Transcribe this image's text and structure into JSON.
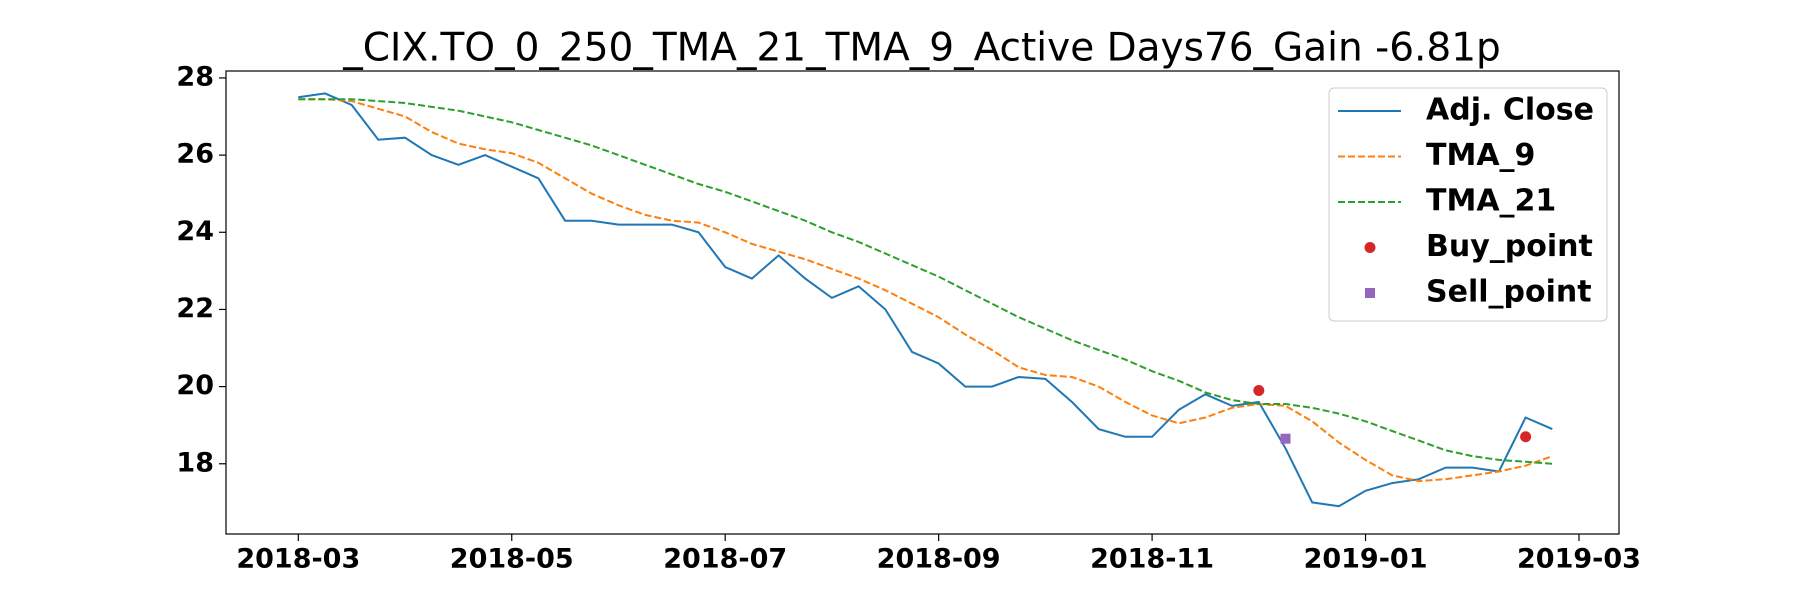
{
  "chart_data": {
    "type": "line",
    "title": "_CIX.TO_0_250_TMA_21_TMA_9_Active Days76_Gain  -6.81p",
    "categories": [
      "2018-03",
      null,
      null,
      null,
      null,
      null,
      null,
      null,
      "2018-05",
      null,
      null,
      null,
      null,
      null,
      null,
      null,
      "2018-07",
      null,
      null,
      null,
      null,
      null,
      null,
      null,
      "2018-09",
      null,
      null,
      null,
      null,
      null,
      null,
      null,
      "2018-11",
      null,
      null,
      null,
      null,
      null,
      null,
      null,
      "2019-01",
      null,
      null,
      null,
      null,
      null,
      null,
      null,
      "2019-03"
    ],
    "ylim": [
      16.18,
      28.18
    ],
    "yticks": [
      18,
      20,
      22,
      24,
      26,
      28
    ],
    "grid": false,
    "legend": "upper right",
    "series": [
      {
        "name": "Adj. Close",
        "color": "#1f77b4",
        "linestyle": "-",
        "values": [
          27.5,
          27.6,
          27.3,
          26.4,
          26.45,
          26.0,
          25.75,
          26.0,
          25.7,
          25.4,
          24.3,
          24.3,
          24.2,
          24.2,
          24.2,
          24.0,
          23.1,
          22.8,
          23.4,
          22.8,
          22.3,
          22.6,
          22.0,
          20.9,
          20.6,
          20.0,
          20.0,
          20.25,
          20.2,
          19.6,
          18.9,
          18.7,
          18.7,
          19.4,
          19.8,
          19.5,
          19.6,
          18.4,
          17.0,
          16.9,
          17.3,
          17.5,
          17.6,
          17.9,
          17.9,
          17.8,
          19.2,
          18.9,
          null
        ]
      },
      {
        "name": "TMA_9",
        "color": "#ff7f0e",
        "linestyle": "--",
        "values": [
          27.45,
          27.45,
          27.4,
          27.2,
          27.0,
          26.6,
          26.3,
          26.15,
          26.05,
          25.8,
          25.4,
          25.0,
          24.7,
          24.45,
          24.3,
          24.25,
          24.0,
          23.7,
          23.5,
          23.3,
          23.05,
          22.8,
          22.5,
          22.15,
          21.8,
          21.35,
          20.95,
          20.5,
          20.3,
          20.25,
          20.0,
          19.6,
          19.25,
          19.05,
          19.2,
          19.45,
          19.55,
          19.5,
          19.1,
          18.55,
          18.1,
          17.7,
          17.55,
          17.6,
          17.7,
          17.8,
          17.95,
          18.2,
          null
        ]
      },
      {
        "name": "TMA_21",
        "color": "#2ca02c",
        "linestyle": "--",
        "values": [
          27.45,
          27.45,
          27.45,
          27.4,
          27.35,
          27.25,
          27.15,
          27.0,
          26.85,
          26.65,
          26.45,
          26.25,
          26.0,
          25.75,
          25.5,
          25.25,
          25.05,
          24.8,
          24.55,
          24.3,
          24.0,
          23.75,
          23.45,
          23.15,
          22.85,
          22.5,
          22.15,
          21.8,
          21.5,
          21.2,
          20.95,
          20.7,
          20.4,
          20.15,
          19.85,
          19.65,
          19.55,
          19.55,
          19.45,
          19.3,
          19.1,
          18.85,
          18.6,
          18.35,
          18.2,
          18.1,
          18.05,
          18.0,
          null
        ]
      },
      {
        "name": "Buy_point",
        "color": "#d62728",
        "marker": "o",
        "values": [
          null,
          null,
          null,
          null,
          null,
          null,
          null,
          null,
          null,
          null,
          null,
          null,
          null,
          null,
          null,
          null,
          null,
          null,
          null,
          null,
          null,
          null,
          null,
          null,
          null,
          null,
          null,
          null,
          null,
          null,
          null,
          null,
          null,
          null,
          null,
          null,
          19.9,
          null,
          null,
          null,
          null,
          null,
          null,
          null,
          null,
          null,
          18.7,
          null,
          null
        ]
      },
      {
        "name": "Sell_point",
        "color": "#9467bd",
        "marker": "s",
        "values": [
          null,
          null,
          null,
          null,
          null,
          null,
          null,
          null,
          null,
          null,
          null,
          null,
          null,
          null,
          null,
          null,
          null,
          null,
          null,
          null,
          null,
          null,
          null,
          null,
          null,
          null,
          null,
          null,
          null,
          null,
          null,
          null,
          null,
          null,
          null,
          null,
          null,
          18.65,
          null,
          null,
          null,
          null,
          null,
          null,
          null,
          null,
          null,
          null,
          null
        ]
      }
    ]
  }
}
